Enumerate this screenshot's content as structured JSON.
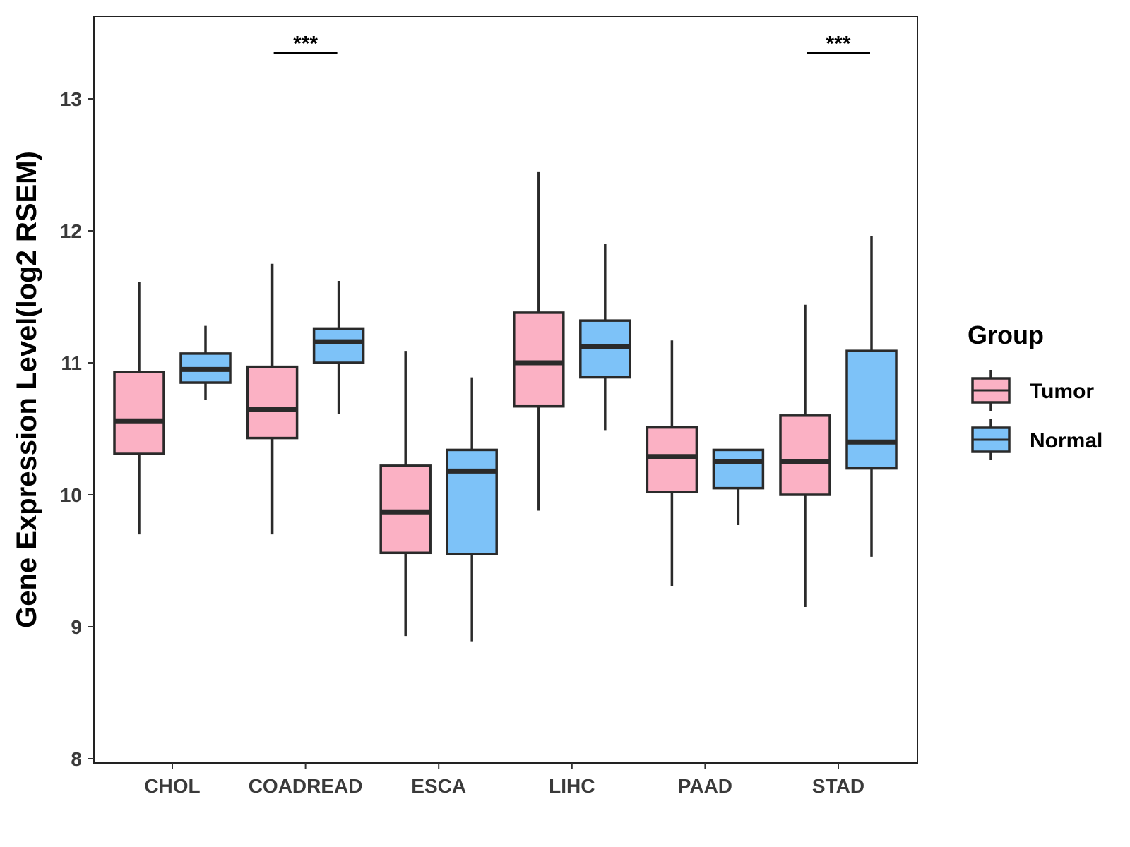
{
  "chart_data": {
    "type": "boxplot",
    "title": "",
    "xlabel": "",
    "ylabel": "Gene Expression Level(log2 RSEM)",
    "ylim": [
      8,
      13.6
    ],
    "yticks": [
      8,
      9,
      10,
      11,
      12,
      13
    ],
    "grid": false,
    "legend_title": "Group",
    "legend_position": "right",
    "categories": [
      "CHOL",
      "COADREAD",
      "ESCA",
      "LIHC",
      "PAAD",
      "STAD"
    ],
    "series": [
      {
        "name": "Tumor",
        "color": "#FBB1C4",
        "boxes": [
          {
            "whisker_low": 9.7,
            "q1": 10.31,
            "median": 10.56,
            "q3": 10.93,
            "whisker_high": 11.61
          },
          {
            "whisker_low": 9.7,
            "q1": 10.43,
            "median": 10.65,
            "q3": 10.97,
            "whisker_high": 11.75
          },
          {
            "whisker_low": 8.93,
            "q1": 9.56,
            "median": 9.87,
            "q3": 10.22,
            "whisker_high": 11.09
          },
          {
            "whisker_low": 9.88,
            "q1": 10.67,
            "median": 11.0,
            "q3": 11.38,
            "whisker_high": 12.45
          },
          {
            "whisker_low": 9.31,
            "q1": 10.02,
            "median": 10.29,
            "q3": 10.51,
            "whisker_high": 11.17
          },
          {
            "whisker_low": 9.15,
            "q1": 10.0,
            "median": 10.25,
            "q3": 10.6,
            "whisker_high": 11.44
          }
        ]
      },
      {
        "name": "Normal",
        "color": "#7DC2F8",
        "boxes": [
          {
            "whisker_low": 10.72,
            "q1": 10.85,
            "median": 10.95,
            "q3": 11.07,
            "whisker_high": 11.28
          },
          {
            "whisker_low": 10.61,
            "q1": 11.0,
            "median": 11.16,
            "q3": 11.26,
            "whisker_high": 11.62
          },
          {
            "whisker_low": 8.89,
            "q1": 9.55,
            "median": 10.18,
            "q3": 10.34,
            "whisker_high": 10.89
          },
          {
            "whisker_low": 10.49,
            "q1": 10.89,
            "median": 11.12,
            "q3": 11.32,
            "whisker_high": 11.9
          },
          {
            "whisker_low": 9.77,
            "q1": 10.05,
            "median": 10.25,
            "q3": 10.34,
            "whisker_high": 10.34
          },
          {
            "whisker_low": 9.53,
            "q1": 10.2,
            "median": 10.4,
            "q3": 11.09,
            "whisker_high": 11.96
          }
        ]
      }
    ],
    "annotations": [
      {
        "category": "COADREAD",
        "text": "***",
        "y": 13.35
      },
      {
        "category": "STAD",
        "text": "***",
        "y": 13.35
      }
    ]
  }
}
